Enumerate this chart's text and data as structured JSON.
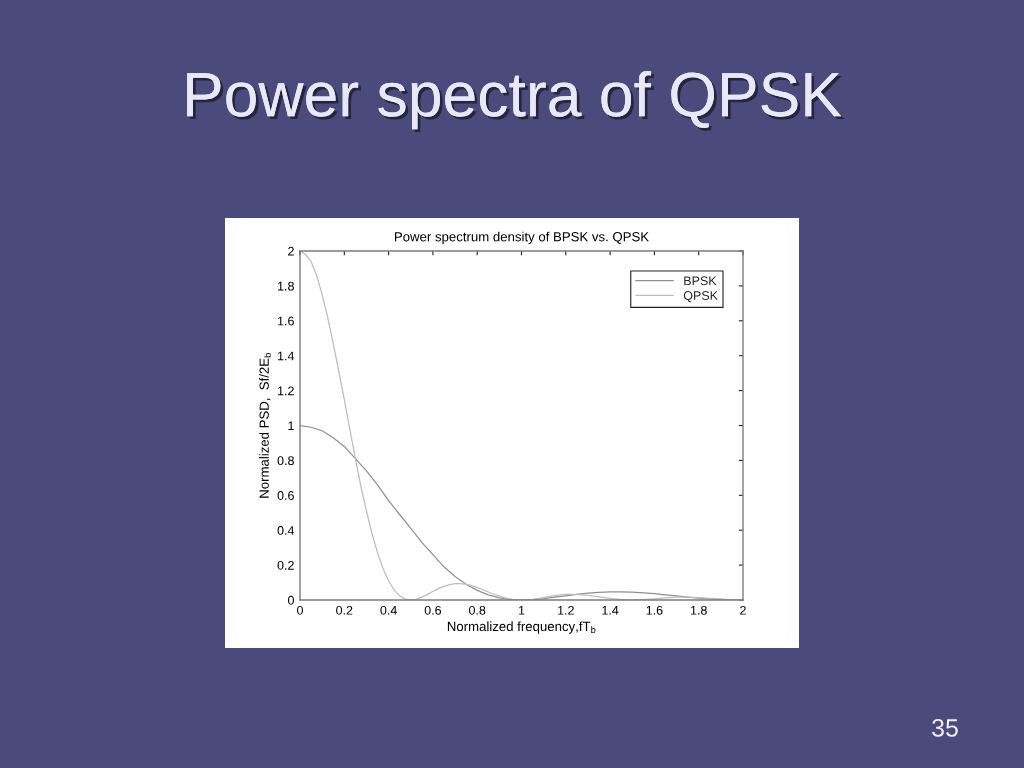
{
  "chart_data": {
    "type": "line",
    "title": "Power spectra of QPSK",
    "subtitle": "Power spectrum density of BPSK vs. QPSK",
    "xlabel": "Normalized frequency,fT$_{b}$",
    "ylabel": "Normalized PSD,  Sf/2E$_{b}$",
    "annotations": [
      "35"
    ],
    "series": [
      {
        "name": "BPSK",
        "color": "#909090",
        "x": [
          0,
          0.05,
          0.1,
          0.15,
          0.2,
          0.25,
          0.3,
          0.35,
          0.4,
          0.45,
          0.5,
          0.55,
          0.6,
          0.65,
          0.7,
          0.75,
          0.8,
          0.85,
          0.9,
          0.95,
          1,
          1.05,
          1.1,
          1.15,
          1.2,
          1.25,
          1.3,
          1.35,
          1.4,
          1.45,
          1.5,
          1.55,
          1.6,
          1.65,
          1.7,
          1.75,
          1.8,
          1.85,
          1.9,
          1.95,
          2
        ],
        "values": [
          1,
          0.99,
          0.97,
          0.93,
          0.88,
          0.81,
          0.74,
          0.66,
          0.57,
          0.49,
          0.41,
          0.33,
          0.26,
          0.19,
          0.135,
          0.09,
          0.055,
          0.029,
          0.012,
          0.003,
          0,
          0.002,
          0.008,
          0.016,
          0.024,
          0.032,
          0.039,
          0.044,
          0.047,
          0.047,
          0.045,
          0.041,
          0.036,
          0.03,
          0.023,
          0.017,
          0.011,
          0.006,
          0.003,
          0.001,
          0
        ]
      },
      {
        "name": "QPSK",
        "color": "#bcbcbc",
        "x": [
          0,
          0.025,
          0.05,
          0.075,
          0.1,
          0.125,
          0.15,
          0.175,
          0.2,
          0.225,
          0.25,
          0.275,
          0.3,
          0.325,
          0.35,
          0.375,
          0.4,
          0.425,
          0.45,
          0.475,
          0.5,
          0.525,
          0.55,
          0.575,
          0.6,
          0.625,
          0.65,
          0.675,
          0.7,
          0.725,
          0.75,
          0.775,
          0.8,
          0.825,
          0.85,
          0.875,
          0.9,
          0.925,
          0.95,
          0.975,
          1,
          1.05,
          1.1,
          1.15,
          1.2,
          1.25,
          1.3,
          1.35,
          1.4,
          1.45,
          1.5,
          1.55,
          1.6,
          1.65,
          1.7,
          1.75,
          1.8,
          1.85,
          1.9,
          1.95,
          2
        ],
        "values": [
          2,
          1.98,
          1.94,
          1.86,
          1.75,
          1.62,
          1.47,
          1.31,
          1.15,
          0.98,
          0.81,
          0.65,
          0.51,
          0.38,
          0.27,
          0.18,
          0.109,
          0.058,
          0.024,
          0.005,
          0,
          0.004,
          0.016,
          0.032,
          0.049,
          0.065,
          0.078,
          0.088,
          0.094,
          0.094,
          0.09,
          0.082,
          0.072,
          0.059,
          0.046,
          0.033,
          0.022,
          0.012,
          0.005,
          0.001,
          0,
          0.004,
          0.014,
          0.025,
          0.032,
          0.032,
          0.027,
          0.018,
          0.009,
          0.002,
          0,
          0.002,
          0.007,
          0.012,
          0.016,
          0.017,
          0.014,
          0.01,
          0.005,
          0.001,
          0
        ]
      }
    ],
    "xlim": [
      0,
      2
    ],
    "ylim": [
      0,
      2
    ],
    "xticks": [
      0,
      0.2,
      0.4,
      0.6,
      0.8,
      1,
      1.2,
      1.4,
      1.6,
      1.8,
      2
    ],
    "yticks": [
      0,
      0.2,
      0.4,
      0.6,
      0.8,
      1,
      1.2,
      1.4,
      1.6,
      1.8,
      2
    ],
    "legend": "top right",
    "line_style": "solid"
  }
}
